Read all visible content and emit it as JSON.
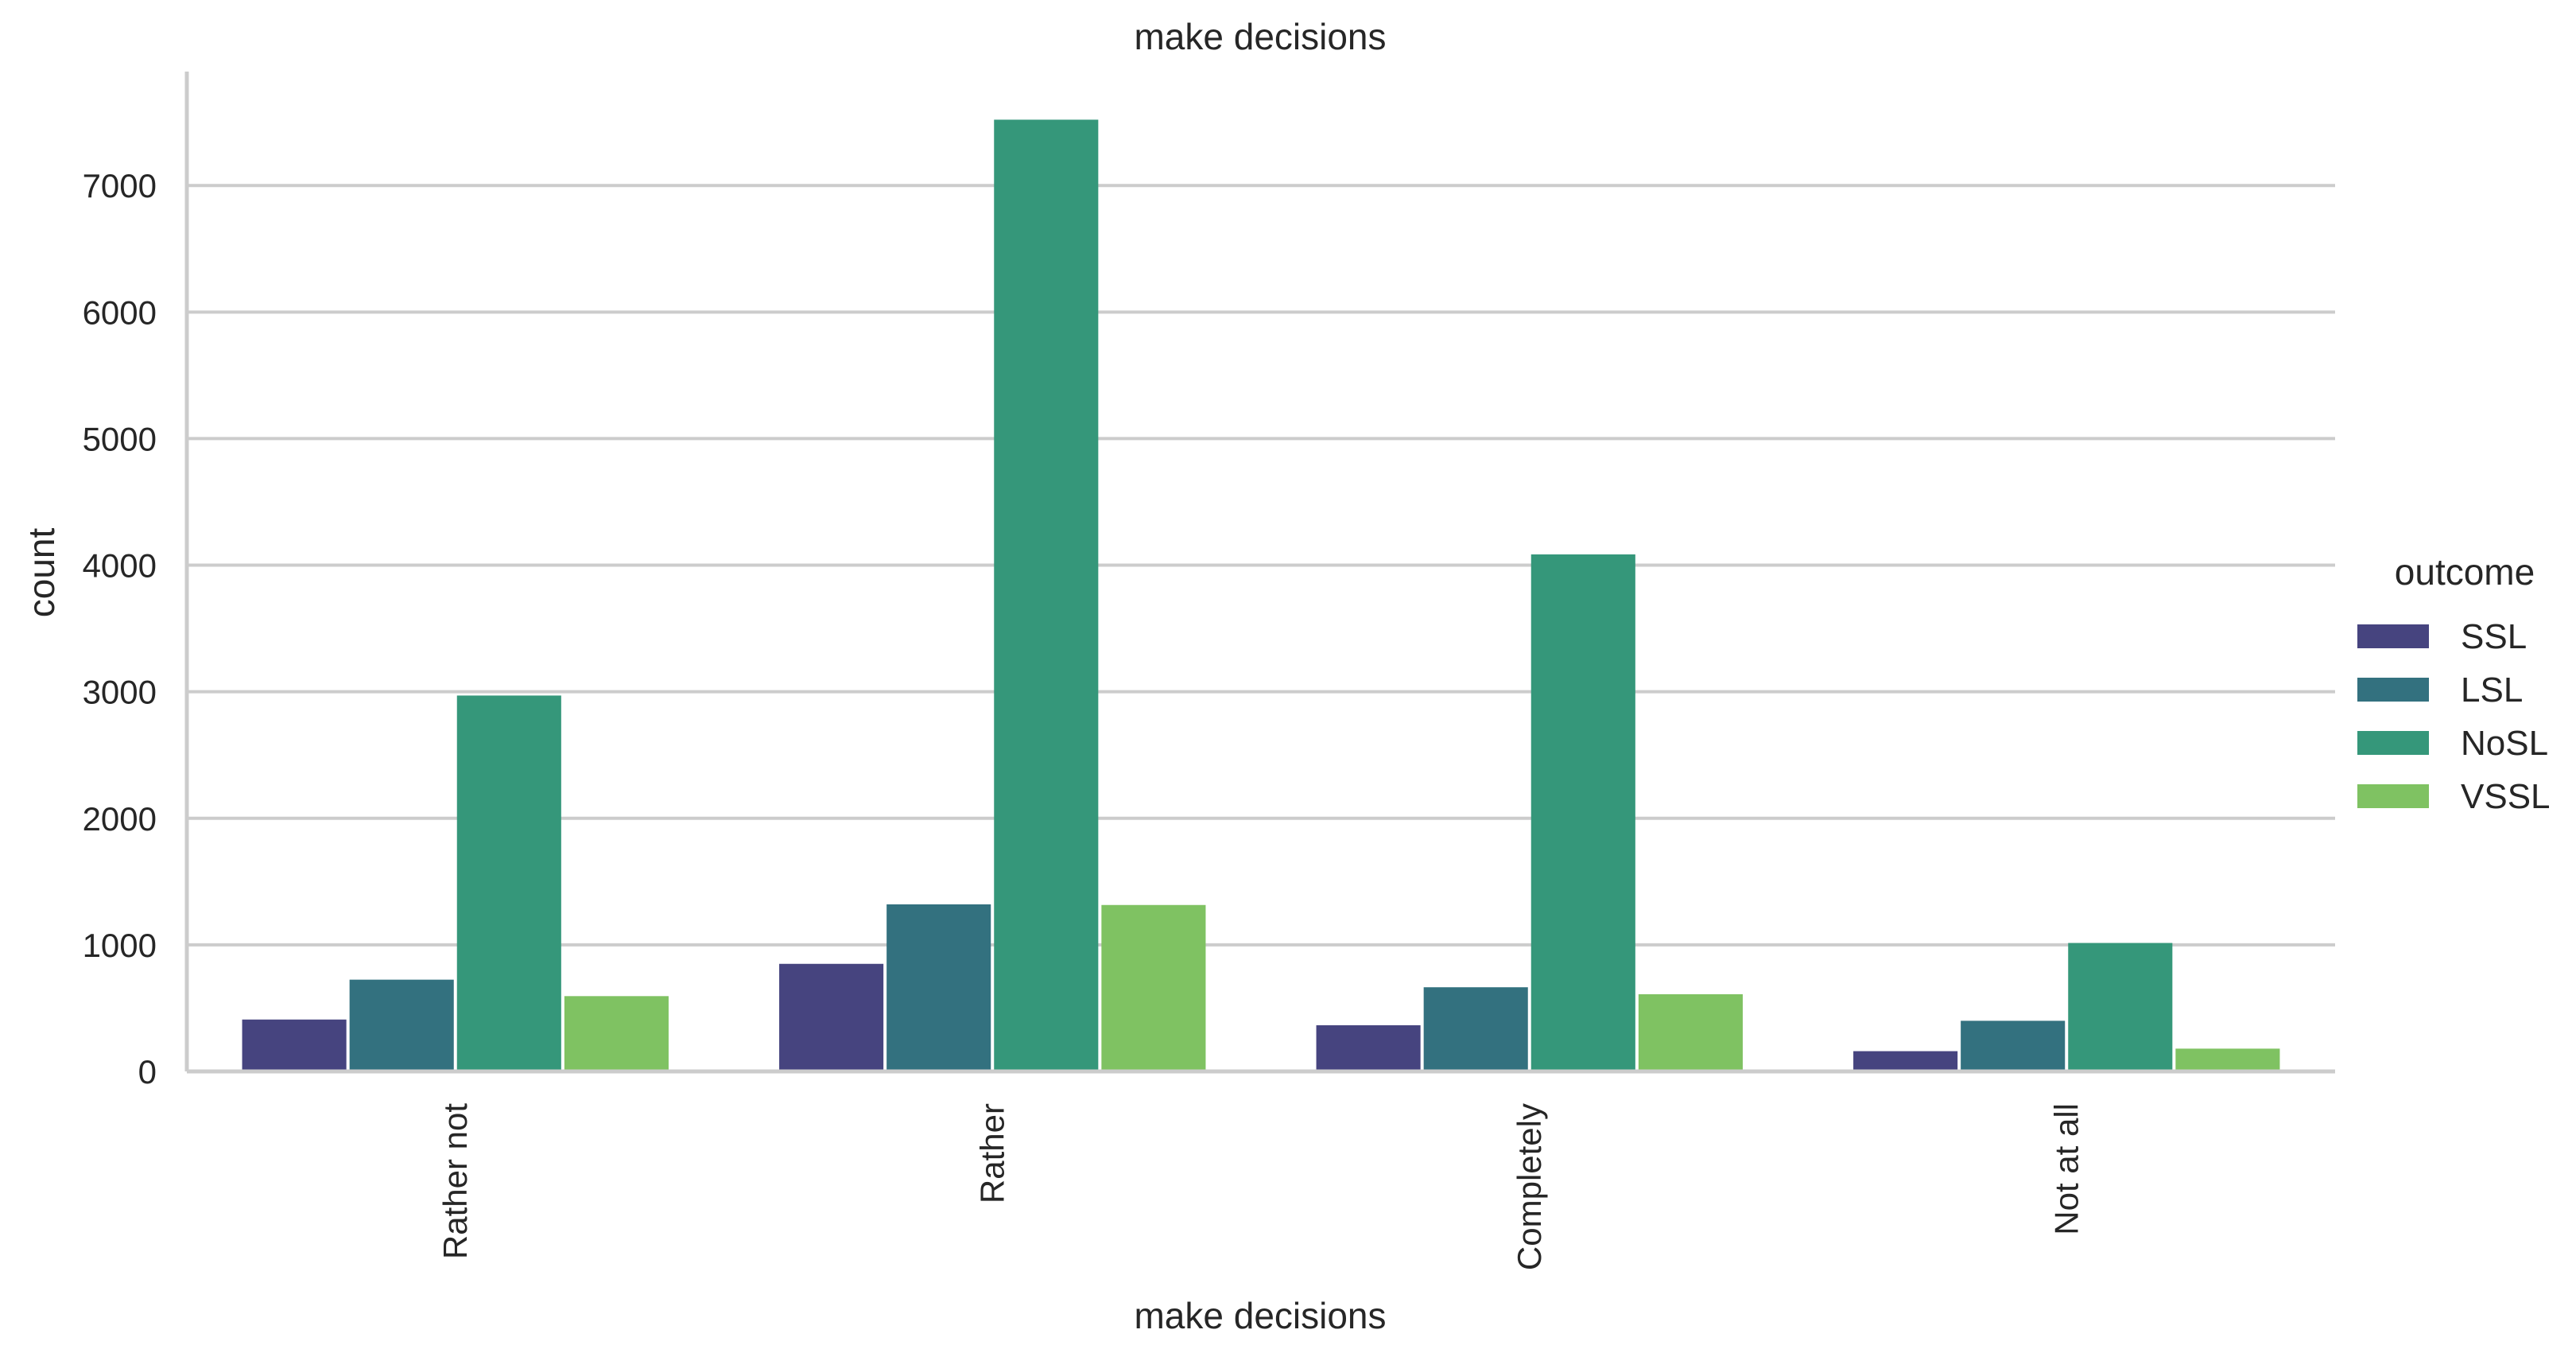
{
  "chart_data": {
    "type": "bar",
    "title": "make decisions",
    "xlabel": "make decisions",
    "ylabel": "count",
    "categories": [
      "Rather not",
      "Rather",
      "Completely",
      "Not at all"
    ],
    "series": [
      {
        "name": "SSL",
        "color": "#46447f",
        "values": [
          410,
          850,
          365,
          160
        ]
      },
      {
        "name": "LSL",
        "color": "#33717f",
        "values": [
          725,
          1320,
          665,
          400
        ]
      },
      {
        "name": "NoSL",
        "color": "#35977a",
        "values": [
          2970,
          7520,
          4085,
          1015
        ]
      },
      {
        "name": "VSSL",
        "color": "#7fc262",
        "values": [
          595,
          1315,
          610,
          180
        ]
      }
    ],
    "ylim": [
      0,
      7900
    ],
    "yticks": [
      0,
      1000,
      2000,
      3000,
      4000,
      5000,
      6000,
      7000
    ],
    "ytick_labels": [
      "0",
      "1000",
      "2000",
      "3000",
      "4000",
      "5000",
      "6000",
      "7000"
    ],
    "grid": true,
    "legend": {
      "title": "outcome",
      "placement": "right"
    }
  }
}
